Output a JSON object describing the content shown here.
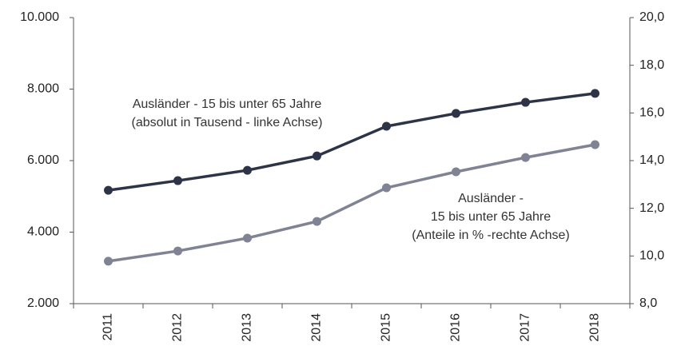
{
  "chart_data": {
    "type": "line",
    "categories": [
      "2011",
      "2012",
      "2013",
      "2014",
      "2015",
      "2016",
      "2017",
      "2018"
    ],
    "series": [
      {
        "color": "#2e3447",
        "values": [
          5170,
          5440,
          5730,
          6130,
          6960,
          7320,
          7630,
          7880
        ]
      },
      {
        "color": "#7f8393",
        "axis": "y2",
        "values": [
          9.78,
          10.21,
          10.75,
          11.45,
          12.86,
          13.53,
          14.13,
          14.67
        ]
      }
    ],
    "ylim": [
      2000,
      10000
    ],
    "yticks": [
      {
        "value": 2000,
        "label": "2.000"
      },
      {
        "value": 4000,
        "label": "4.000"
      },
      {
        "value": 6000,
        "label": "6.000"
      },
      {
        "value": 8000,
        "label": "8.000"
      },
      {
        "value": 10000,
        "label": "10.000"
      }
    ],
    "y2lim": [
      8,
      20
    ],
    "y2ticks": [
      {
        "value": 8,
        "label": "8,0"
      },
      {
        "value": 10,
        "label": "10,0"
      },
      {
        "value": 12,
        "label": "12,0"
      },
      {
        "value": 14,
        "label": "14,0"
      },
      {
        "value": 16,
        "label": "16,0"
      },
      {
        "value": 18,
        "label": "18,0"
      },
      {
        "value": 20,
        "label": "20,0"
      }
    ],
    "annotations": [
      {
        "lines": [
          "Ausländer - 15 bis unter 65 Jahre",
          "(absolut in Tausend - linke Achse)"
        ]
      },
      {
        "lines": [
          "Ausländer -",
          "15 bis unter 65 Jahre",
          "(Anteile in % -rechte Achse)"
        ]
      }
    ]
  }
}
